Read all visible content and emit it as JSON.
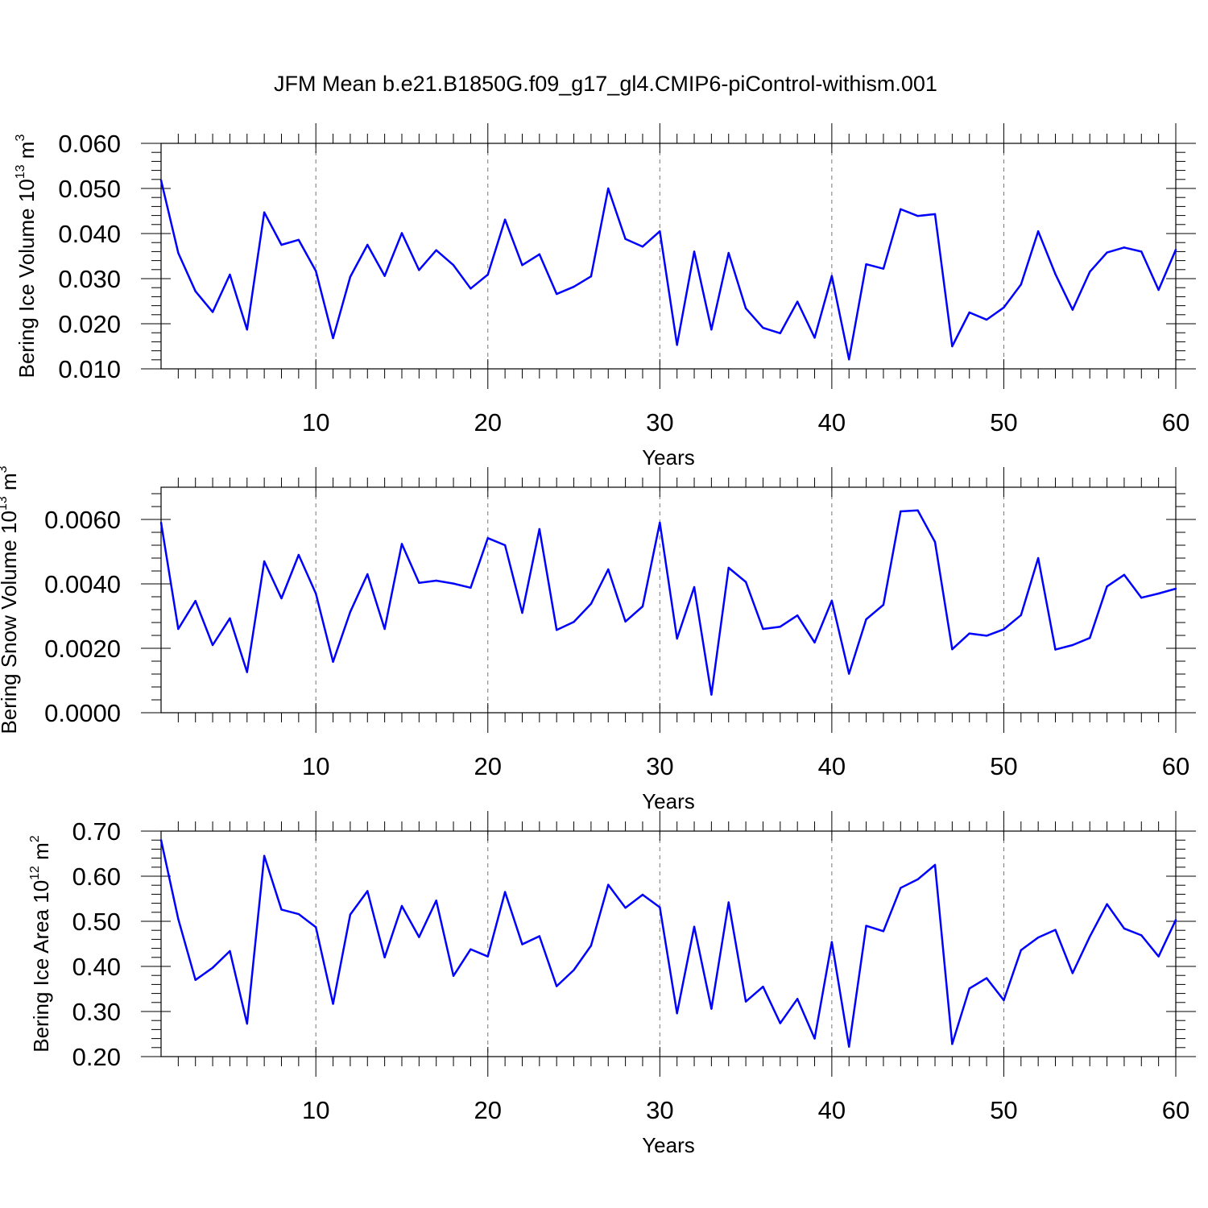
{
  "title": "JFM Mean b.e21.B1850G.f09_g17_gl4.CMIP6-piControl-withism.001",
  "chart_data": [
    {
      "type": "line",
      "ylabel": {
        "main": "Bering Ice Volume 10",
        "exp": "13",
        "unit": " m",
        "unit_exp": "3"
      },
      "xlabel": "Years",
      "xlim": [
        1,
        60
      ],
      "ylim": [
        0.01,
        0.06
      ],
      "xticks": [
        10,
        20,
        30,
        40,
        50,
        60
      ],
      "xtick_labels": [
        "10",
        "20",
        "30",
        "40",
        "50",
        "60"
      ],
      "yticks": [
        0.01,
        0.02,
        0.03,
        0.04,
        0.05,
        0.06
      ],
      "ytick_labels": [
        "0.010",
        "0.020",
        "0.030",
        "0.040",
        "0.050",
        "0.060"
      ],
      "line_color": "#0000ff",
      "grid": "vertical dashed at major x ticks",
      "x": [
        1,
        2,
        3,
        4,
        5,
        6,
        7,
        8,
        9,
        10,
        11,
        12,
        13,
        14,
        15,
        16,
        17,
        18,
        19,
        20,
        21,
        22,
        23,
        24,
        25,
        26,
        27,
        28,
        29,
        30,
        31,
        32,
        33,
        34,
        35,
        36,
        37,
        38,
        39,
        40,
        41,
        42,
        43,
        44,
        45,
        46,
        47,
        48,
        49,
        50,
        51,
        52,
        53,
        54,
        55,
        56,
        57,
        58,
        59,
        60
      ],
      "values": [
        0.0518,
        0.0357,
        0.0272,
        0.0226,
        0.0309,
        0.0187,
        0.0447,
        0.0375,
        0.0386,
        0.0317,
        0.0168,
        0.0304,
        0.0375,
        0.0306,
        0.0401,
        0.0319,
        0.0363,
        0.033,
        0.0278,
        0.0309,
        0.0431,
        0.033,
        0.0354,
        0.0266,
        0.0282,
        0.0305,
        0.05,
        0.0388,
        0.0371,
        0.0405,
        0.0153,
        0.036,
        0.0187,
        0.0357,
        0.0234,
        0.0191,
        0.0179,
        0.0249,
        0.0169,
        0.0306,
        0.0121,
        0.0332,
        0.0322,
        0.0454,
        0.0439,
        0.0443,
        0.015,
        0.0225,
        0.0209,
        0.0236,
        0.0287,
        0.0405,
        0.031,
        0.0231,
        0.0315,
        0.0358,
        0.0369,
        0.036,
        0.0275,
        0.0364
      ]
    },
    {
      "type": "line",
      "ylabel": {
        "main": "Bering Snow Volume 10",
        "exp": "13",
        "unit": " m",
        "unit_exp": "3"
      },
      "xlabel": "Years",
      "xlim": [
        1,
        60
      ],
      "ylim": [
        0.0,
        0.007
      ],
      "xticks": [
        10,
        20,
        30,
        40,
        50,
        60
      ],
      "xtick_labels": [
        "10",
        "20",
        "30",
        "40",
        "50",
        "60"
      ],
      "yticks": [
        0.0,
        0.002,
        0.004,
        0.006
      ],
      "ytick_labels": [
        "0.0000",
        "0.0020",
        "0.0040",
        "0.0060"
      ],
      "line_color": "#0000ff",
      "grid": "vertical dashed at major x ticks",
      "x": [
        1,
        2,
        3,
        4,
        5,
        6,
        7,
        8,
        9,
        10,
        11,
        12,
        13,
        14,
        15,
        16,
        17,
        18,
        19,
        20,
        21,
        22,
        23,
        24,
        25,
        26,
        27,
        28,
        29,
        30,
        31,
        32,
        33,
        34,
        35,
        36,
        37,
        38,
        39,
        40,
        41,
        42,
        43,
        44,
        45,
        46,
        47,
        48,
        49,
        50,
        51,
        52,
        53,
        54,
        55,
        56,
        57,
        58,
        59,
        60
      ],
      "values": [
        0.0059,
        0.0026,
        0.00347,
        0.0021,
        0.00293,
        0.00126,
        0.0047,
        0.00355,
        0.0049,
        0.0037,
        0.00158,
        0.00313,
        0.0043,
        0.0026,
        0.00524,
        0.00403,
        0.0041,
        0.00401,
        0.00388,
        0.00542,
        0.0052,
        0.0031,
        0.0057,
        0.00257,
        0.00282,
        0.00338,
        0.00445,
        0.00283,
        0.0033,
        0.0059,
        0.0023,
        0.0039,
        0.00056,
        0.0045,
        0.00406,
        0.0026,
        0.00267,
        0.00302,
        0.00218,
        0.00348,
        0.00121,
        0.0029,
        0.00335,
        0.00625,
        0.00628,
        0.0053,
        0.00197,
        0.00246,
        0.00239,
        0.00259,
        0.00303,
        0.0048,
        0.00196,
        0.0021,
        0.00232,
        0.00392,
        0.00428,
        0.00357,
        0.0037,
        0.00385
      ]
    },
    {
      "type": "line",
      "ylabel": {
        "main": "Bering Ice Area 10",
        "exp": "12",
        "unit": " m",
        "unit_exp": "2"
      },
      "xlabel": "Years",
      "xlim": [
        1,
        60
      ],
      "ylim": [
        0.2,
        0.7
      ],
      "xticks": [
        10,
        20,
        30,
        40,
        50,
        60
      ],
      "xtick_labels": [
        "10",
        "20",
        "30",
        "40",
        "50",
        "60"
      ],
      "yticks": [
        0.2,
        0.3,
        0.4,
        0.5,
        0.6,
        0.7
      ],
      "ytick_labels": [
        "0.20",
        "0.30",
        "0.40",
        "0.50",
        "0.60",
        "0.70"
      ],
      "line_color": "#0000ff",
      "grid": "vertical dashed at major x ticks",
      "x": [
        1,
        2,
        3,
        4,
        5,
        6,
        7,
        8,
        9,
        10,
        11,
        12,
        13,
        14,
        15,
        16,
        17,
        18,
        19,
        20,
        21,
        22,
        23,
        24,
        25,
        26,
        27,
        28,
        29,
        30,
        31,
        32,
        33,
        34,
        35,
        36,
        37,
        38,
        39,
        40,
        41,
        42,
        43,
        44,
        45,
        46,
        47,
        48,
        49,
        50,
        51,
        52,
        53,
        54,
        55,
        56,
        57,
        58,
        59,
        60
      ],
      "values": [
        0.68,
        0.505,
        0.37,
        0.397,
        0.434,
        0.273,
        0.645,
        0.526,
        0.516,
        0.487,
        0.317,
        0.515,
        0.567,
        0.42,
        0.534,
        0.465,
        0.546,
        0.379,
        0.438,
        0.422,
        0.565,
        0.449,
        0.467,
        0.356,
        0.392,
        0.446,
        0.581,
        0.53,
        0.559,
        0.531,
        0.296,
        0.488,
        0.306,
        0.542,
        0.322,
        0.355,
        0.274,
        0.328,
        0.24,
        0.454,
        0.222,
        0.49,
        0.478,
        0.574,
        0.593,
        0.625,
        0.228,
        0.351,
        0.374,
        0.325,
        0.436,
        0.464,
        0.481,
        0.385,
        0.466,
        0.538,
        0.484,
        0.469,
        0.422,
        0.503
      ]
    }
  ]
}
